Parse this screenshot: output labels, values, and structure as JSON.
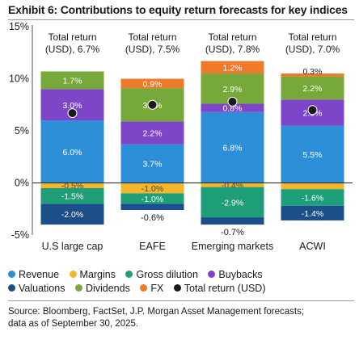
{
  "chart_data": {
    "type": "bar",
    "title": "Exhibit 6: Contributions to equity return forecasts for key indices",
    "categories": [
      "U.S large cap",
      "EAFE",
      "Emerging markets",
      "ACWI"
    ],
    "header_labels": [
      [
        "Total return",
        "(USD), 6.7%"
      ],
      [
        "Total return",
        "(USD), 7.5%"
      ],
      [
        "Total return",
        "(USD), 7.8%"
      ],
      [
        "Total return",
        "(USD), 7.0%"
      ]
    ],
    "ylim": [
      -5,
      15
    ],
    "yticks": [
      15,
      10,
      5,
      0,
      -5
    ],
    "ytick_labels": [
      "15%",
      "10%",
      "5%",
      "0%",
      "-5%"
    ],
    "series": [
      {
        "name": "Revenue",
        "color": "#2e8fd9",
        "values": [
          6.0,
          3.7,
          6.8,
          5.5
        ],
        "labels": [
          "6.0%",
          "3.7%",
          "6.8%",
          "5.5%"
        ]
      },
      {
        "name": "Margins",
        "color": "#f3b72d",
        "values": [
          -0.5,
          -1.0,
          -0.4,
          -0.6
        ],
        "labels": [
          "-0.5%",
          "-1.0%",
          "-0.4%",
          "-0.6%"
        ]
      },
      {
        "name": "Gross dilution",
        "color": "#1f9e7a",
        "values": [
          -1.5,
          -1.0,
          -2.9,
          -1.6
        ],
        "labels": [
          "-1.5%",
          "-1.0%",
          "-2.9%",
          "-1.6%"
        ]
      },
      {
        "name": "Buybacks",
        "color": "#7d46c9",
        "values": [
          3.0,
          2.2,
          0.8,
          2.5
        ],
        "labels": [
          "3.0%",
          "2.2%",
          "0.8%",
          "2.5%"
        ]
      },
      {
        "name": "Valuations",
        "color": "#1c4f8a",
        "values": [
          -2.0,
          -0.6,
          -0.7,
          -1.4
        ],
        "labels": [
          "-2.0%",
          "-0.6%",
          "-0.7%",
          "-1.4%"
        ]
      },
      {
        "name": "Dividends",
        "color": "#76a83a",
        "values": [
          1.7,
          3.2,
          2.9,
          2.2
        ],
        "labels": [
          "1.7%",
          "3.2%",
          "2.9%",
          "2.2%"
        ]
      },
      {
        "name": "FX",
        "color": "#ee7a2c",
        "values": [
          0.0,
          0.9,
          1.2,
          0.3
        ],
        "labels": [
          "",
          "0.9%",
          "1.2%",
          "0.3%"
        ]
      }
    ],
    "total_return": {
      "name": "Total return (USD)",
      "color": "#1a1a1a",
      "values": [
        6.7,
        7.5,
        7.8,
        7.0
      ]
    },
    "grid": false,
    "legend_position": "bottom"
  },
  "legend": {
    "row1": [
      {
        "label": "Revenue",
        "color": "#2e8fd9"
      },
      {
        "label": "Margins",
        "color": "#f3b72d"
      },
      {
        "label": "Gross dilution",
        "color": "#1f9e7a"
      },
      {
        "label": "Buybacks",
        "color": "#7d46c9"
      }
    ],
    "row2": [
      {
        "label": "Valuations",
        "color": "#1c4f8a"
      },
      {
        "label": "Dividends",
        "color": "#76a83a"
      },
      {
        "label": "FX",
        "color": "#ee7a2c"
      },
      {
        "label": "Total return (USD)",
        "color": "#1a1a1a"
      }
    ]
  },
  "source": {
    "line1": "Source: Bloomberg, FactSet, J.P. Morgan Asset Management forecasts;",
    "line2": "data as of September 30, 2025."
  }
}
